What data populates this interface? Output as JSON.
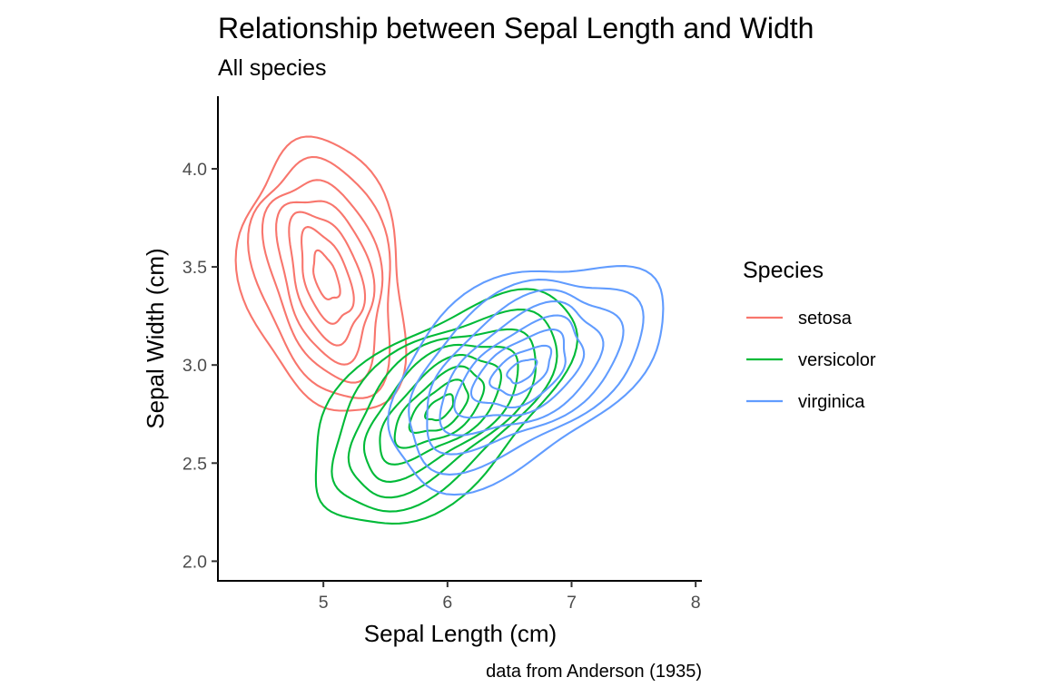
{
  "chart_data": {
    "type": "contour",
    "title": "Relationship between Sepal Length and Width",
    "subtitle": "All species",
    "xlabel": "Sepal Length (cm)",
    "ylabel": "Sepal Width (cm)",
    "caption": "data from Anderson (1935)",
    "xlim": [
      4.15,
      8.05
    ],
    "ylim": [
      1.9,
      4.37
    ],
    "x_ticks": [
      5,
      6,
      7,
      8
    ],
    "x_tick_labels": [
      "5",
      "6",
      "7",
      "8"
    ],
    "y_ticks": [
      2.0,
      2.5,
      3.0,
      3.5,
      4.0
    ],
    "y_tick_labels": [
      "2.0",
      "2.5",
      "3.0",
      "3.5",
      "4.0"
    ],
    "grid": false,
    "legend": {
      "title": "Species",
      "placement": "right"
    },
    "series": [
      {
        "name": "setosa",
        "color": "#F8766D",
        "center": [
          5.02,
          3.45
        ],
        "levels": [
          {
            "rx": 0.6,
            "ry": 0.75,
            "rot": 0.65
          },
          {
            "rx": 0.5,
            "ry": 0.66,
            "rot": 0.65
          },
          {
            "rx": 0.4,
            "ry": 0.56,
            "rot": 0.65
          },
          {
            "rx": 0.32,
            "ry": 0.46,
            "rot": 0.65
          },
          {
            "rx": 0.24,
            "ry": 0.37,
            "rot": 0.65
          },
          {
            "rx": 0.16,
            "ry": 0.27,
            "rot": 0.65
          },
          {
            "rx": 0.08,
            "ry": 0.14,
            "rot": 0.65
          }
        ]
      },
      {
        "name": "versicolor",
        "color": "#00BA38",
        "center": [
          5.94,
          2.78
        ],
        "levels": [
          {
            "rx": 1.12,
            "ry": 0.45,
            "rot": 0.38
          },
          {
            "rx": 0.96,
            "ry": 0.38,
            "rot": 0.38
          },
          {
            "rx": 0.8,
            "ry": 0.32,
            "rot": 0.38
          },
          {
            "rx": 0.66,
            "ry": 0.26,
            "rot": 0.38
          },
          {
            "rx": 0.52,
            "ry": 0.2,
            "rot": 0.38
          },
          {
            "rx": 0.38,
            "ry": 0.15,
            "rot": 0.38
          },
          {
            "rx": 0.25,
            "ry": 0.1,
            "rot": 0.38
          },
          {
            "rx": 0.12,
            "ry": 0.05,
            "rot": 0.38
          }
        ]
      },
      {
        "name": "virginica",
        "color": "#619CFF",
        "center": [
          6.6,
          2.97
        ],
        "levels": [
          {
            "rx": 1.15,
            "ry": 0.48,
            "rot": 0.3
          },
          {
            "rx": 0.98,
            "ry": 0.4,
            "rot": 0.3
          },
          {
            "rx": 0.82,
            "ry": 0.33,
            "rot": 0.3
          },
          {
            "rx": 0.67,
            "ry": 0.27,
            "rot": 0.3
          },
          {
            "rx": 0.53,
            "ry": 0.21,
            "rot": 0.3
          },
          {
            "rx": 0.39,
            "ry": 0.16,
            "rot": 0.3
          },
          {
            "rx": 0.25,
            "ry": 0.1,
            "rot": 0.3
          },
          {
            "rx": 0.12,
            "ry": 0.05,
            "rot": 0.3
          }
        ]
      }
    ]
  }
}
